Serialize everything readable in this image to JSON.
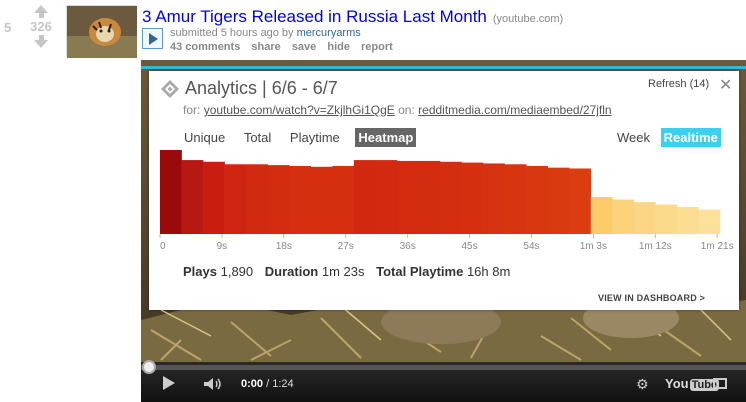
{
  "post": {
    "rank": "5",
    "score": "326",
    "title": "3 Amur Tigers Released in Russia Last Month",
    "domain": "(youtube.com)",
    "tagline_prefix": "submitted 5 hours ago by",
    "author": "mercuryarms",
    "buttons": [
      "43 comments",
      "share",
      "save",
      "hide",
      "report"
    ]
  },
  "analytics": {
    "title": "Analytics | 6/6 - 6/7",
    "refresh": "Refresh (14)",
    "close": "✕",
    "for_label": "for:",
    "url": "youtube.com/watch?v=ZkjlhGi1QgE",
    "on_label": "on:",
    "embed_url": "redditmedia.com/mediaembed/27jfln",
    "tabs": [
      "Unique",
      "Total",
      "Playtime",
      "Heatmap"
    ],
    "selected_tab": "Heatmap",
    "ranges": [
      "Week",
      "Realtime"
    ],
    "selected_range": "Realtime",
    "summary": {
      "plays_label": "Plays",
      "plays_value": "1,890",
      "duration_label": "Duration",
      "duration_value": "1m 23s",
      "playtime_label": "Total Playtime",
      "playtime_value": "16h 8m"
    },
    "dashboard_link": "VIEW IN DASHBOARD >"
  },
  "chart_data": {
    "type": "bar",
    "tick_labels": [
      "0",
      "9s",
      "18s",
      "27s",
      "36s",
      "45s",
      "54s",
      "1m 3s",
      "1m 12s",
      "1m 21s"
    ],
    "values": [
      1.0,
      0.88,
      0.86,
      0.83,
      0.83,
      0.82,
      0.81,
      0.8,
      0.81,
      0.88,
      0.88,
      0.87,
      0.87,
      0.86,
      0.85,
      0.84,
      0.83,
      0.81,
      0.79,
      0.78,
      0.44,
      0.41,
      0.38,
      0.35,
      0.32,
      0.29
    ],
    "colors": [
      "#9b0a0a",
      "#b81812",
      "#c91d10",
      "#cf2510",
      "#d22a10",
      "#d42c10",
      "#d52e10",
      "#d62f10",
      "#d62f10",
      "#d22810",
      "#d22910",
      "#d32a10",
      "#d32b10",
      "#d42d10",
      "#d52f10",
      "#d63110",
      "#d73410",
      "#d83710",
      "#da3a10",
      "#dc3d10",
      "#fccb6a",
      "#fcd27a",
      "#fcd684",
      "#fcda8c",
      "#fcdd92",
      "#fde09a"
    ]
  },
  "player": {
    "current_time": "0:00",
    "duration": "/ 1:24",
    "youtube_label": "You",
    "tube_label": "Tube"
  }
}
